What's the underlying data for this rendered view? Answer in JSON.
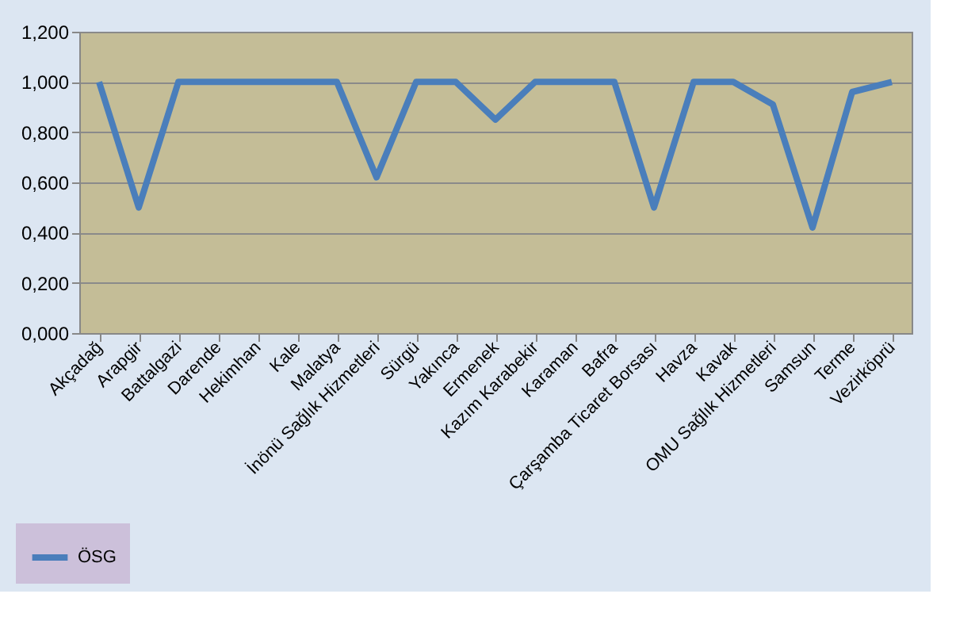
{
  "chart_data": {
    "type": "line",
    "categories": [
      "Akçadağ",
      "Arapgir",
      "Battalgazi",
      "Darende",
      "Hekimhan",
      "Kale",
      "Malatya",
      "İnönü Sağlık Hizmetleri",
      "Sürgü",
      "Yakınca",
      "Ermenek",
      "Kazım Karabekir",
      "Karaman",
      "Bafra",
      "Çarşamba Ticaret Borsası",
      "Havza",
      "Kavak",
      "OMU Sağlık Hizmetleri",
      "Samsun",
      "Terme",
      "Vezirköprü"
    ],
    "series": [
      {
        "name": "ÖSG",
        "color": "#4a7ebb",
        "values": [
          1.0,
          0.5,
          1.0,
          1.0,
          1.0,
          1.0,
          1.0,
          0.62,
          1.0,
          1.0,
          0.85,
          1.0,
          1.0,
          1.0,
          0.5,
          1.0,
          1.0,
          0.91,
          0.42,
          0.96,
          1.0
        ]
      }
    ],
    "ylim": [
      0,
      1.2
    ],
    "yticks": [
      {
        "value": 0,
        "label": "0,000"
      },
      {
        "value": 0.2,
        "label": "0,200"
      },
      {
        "value": 0.4,
        "label": "0,400"
      },
      {
        "value": 0.6,
        "label": "0,600"
      },
      {
        "value": 0.8,
        "label": "0,800"
      },
      {
        "value": 1.0,
        "label": "1,000"
      },
      {
        "value": 1.2,
        "label": "1,200"
      }
    ],
    "grid": "y",
    "legend": "bottom left",
    "marker": "none",
    "line_style": "solid"
  }
}
